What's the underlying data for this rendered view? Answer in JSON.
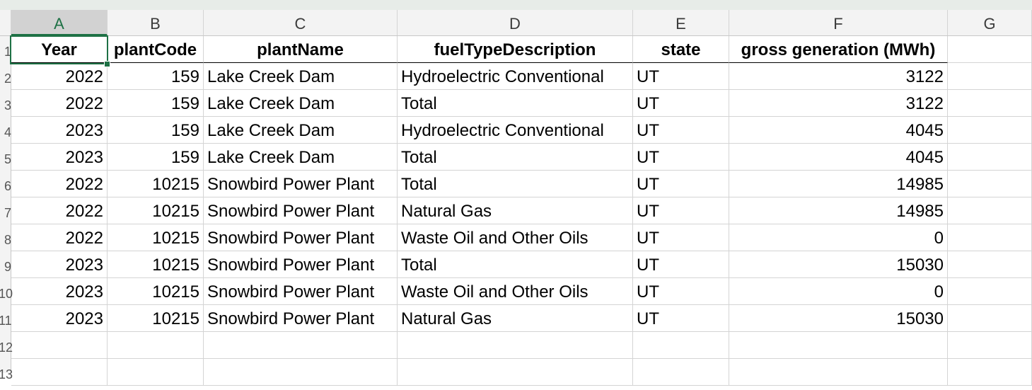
{
  "columns": [
    "A",
    "B",
    "C",
    "D",
    "E",
    "F",
    "G"
  ],
  "row_numbers": [
    "1",
    "2",
    "3",
    "4",
    "5",
    "6",
    "7",
    "8",
    "9",
    "10",
    "11",
    "12",
    "13"
  ],
  "active_cell": "A1",
  "headers": [
    "Year",
    "plantCode",
    "plantName",
    "fuelTypeDescription",
    "state",
    "gross generation (MWh)"
  ],
  "rows": [
    [
      "2022",
      "159",
      "Lake Creek Dam",
      "Hydroelectric Conventional",
      "UT",
      "3122"
    ],
    [
      "2022",
      "159",
      "Lake Creek Dam",
      "Total",
      "UT",
      "3122"
    ],
    [
      "2023",
      "159",
      "Lake Creek Dam",
      "Hydroelectric Conventional",
      "UT",
      "4045"
    ],
    [
      "2023",
      "159",
      "Lake Creek Dam",
      "Total",
      "UT",
      "4045"
    ],
    [
      "2022",
      "10215",
      "Snowbird Power Plant",
      "Total",
      "UT",
      "14985"
    ],
    [
      "2022",
      "10215",
      "Snowbird Power Plant",
      "Natural Gas",
      "UT",
      "14985"
    ],
    [
      "2022",
      "10215",
      "Snowbird Power Plant",
      "Waste Oil and Other Oils",
      "UT",
      "0"
    ],
    [
      "2023",
      "10215",
      "Snowbird Power Plant",
      "Total",
      "UT",
      "15030"
    ],
    [
      "2023",
      "10215",
      "Snowbird Power Plant",
      "Waste Oil and Other Oils",
      "UT",
      "0"
    ],
    [
      "2023",
      "10215",
      "Snowbird Power Plant",
      "Natural Gas",
      "UT",
      "15030"
    ]
  ],
  "colors": {
    "accent": "#1e7145",
    "header_bg": "#f3f3f3",
    "gridline": "#d4d4d4"
  }
}
